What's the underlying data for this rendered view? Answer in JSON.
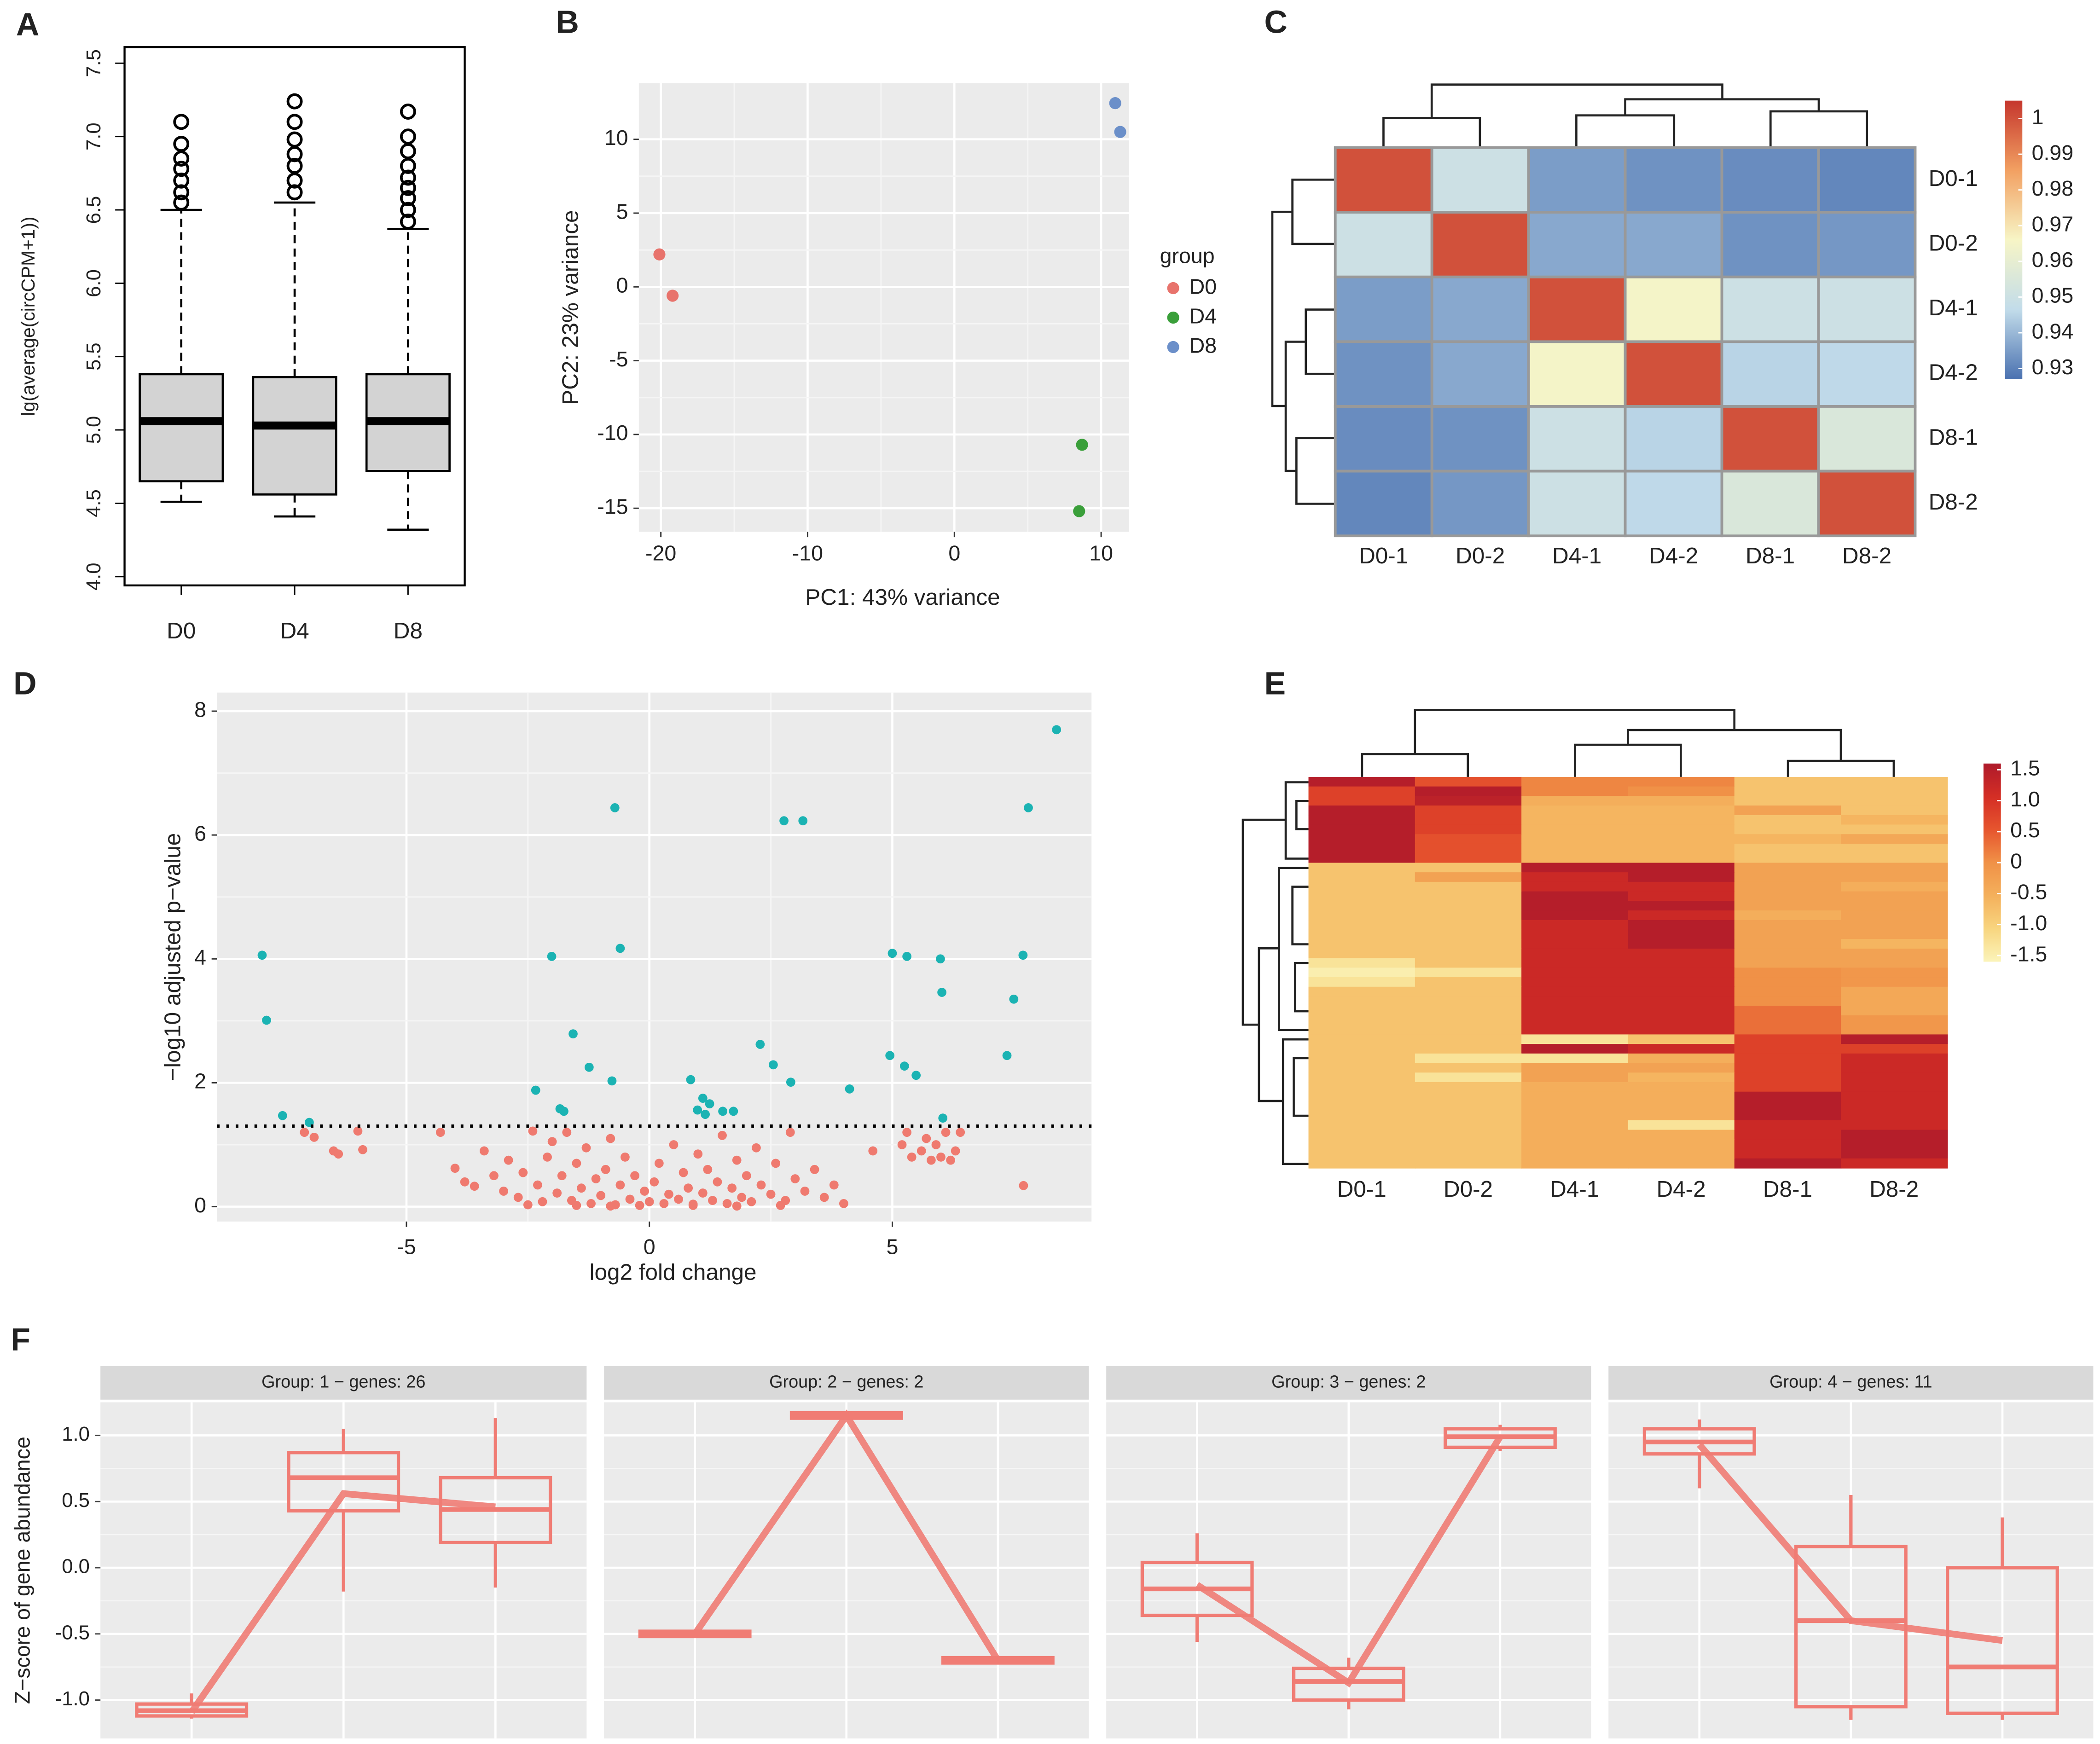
{
  "chart_data": [
    {
      "type": "box",
      "panel_label": "A",
      "ylabel": "lg(average(circCPM+1))",
      "categories": [
        "D0",
        "D4",
        "D8"
      ],
      "color": "#d3d3d3",
      "boxes": [
        {
          "whislo": 4.51,
          "q1": 4.65,
          "med": 5.06,
          "q3": 5.38,
          "whishi": 6.5,
          "fliers": [
            6.55,
            6.62,
            6.7,
            6.78,
            6.85,
            6.95,
            7.1
          ]
        },
        {
          "whislo": 4.41,
          "q1": 4.56,
          "med": 5.03,
          "q3": 5.36,
          "whishi": 6.55,
          "fliers": [
            6.62,
            6.7,
            6.8,
            6.88,
            6.98,
            7.1,
            7.24
          ]
        },
        {
          "whislo": 4.32,
          "q1": 4.72,
          "med": 5.06,
          "q3": 5.38,
          "whishi": 6.37,
          "fliers": [
            6.42,
            6.5,
            6.58,
            6.65,
            6.72,
            6.8,
            6.9,
            7.0,
            7.17
          ]
        }
      ],
      "ylim": [
        3.94,
        7.61
      ],
      "yticks": [
        {
          "value": 4,
          "label": "4.0"
        },
        4.5,
        {
          "value": 5,
          "label": "5.0"
        },
        5.5,
        {
          "value": 6,
          "label": "6.0"
        },
        6.5,
        {
          "value": 7,
          "label": "7.0"
        },
        7.5
      ]
    },
    {
      "type": "scatter",
      "panel_label": "B",
      "xlabel": "PC1: 43% variance",
      "ylabel": "PC2: 23% variance",
      "legend_title": "group",
      "legend": "right",
      "grid": true,
      "series": [
        {
          "name": "D0",
          "color": "#e8736c",
          "x": [
            -20.1,
            -19.2
          ],
          "values": [
            2.2,
            -0.6
          ]
        },
        {
          "name": "D4",
          "color": "#3a9f3a",
          "x": [
            8.7,
            8.5
          ],
          "values": [
            -10.7,
            -15.2
          ]
        },
        {
          "name": "D8",
          "color": "#6b8fc9",
          "x": [
            10.96,
            11.3
          ],
          "values": [
            12.45,
            10.5
          ]
        }
      ],
      "xlim": [
        -21.5,
        11.9
      ],
      "ylim": [
        -16.6,
        13.8
      ],
      "xticks": [
        -20,
        -10,
        0,
        10
      ],
      "yticks": [
        -15,
        -10,
        -5,
        0,
        5,
        10
      ]
    },
    {
      "type": "heatmap",
      "panel_label": "C",
      "rows": [
        "D0-1",
        "D0-2",
        "D4-1",
        "D4-2",
        "D8-1",
        "D8-2"
      ],
      "columns": [
        "D0-1",
        "D0-2",
        "D4-1",
        "D4-2",
        "D8-1",
        "D8-2"
      ],
      "values": [
        [
          1,
          0.95,
          0.935,
          0.933,
          0.932,
          0.931
        ],
        [
          0.95,
          1,
          0.937,
          0.937,
          0.933,
          0.934
        ],
        [
          0.935,
          0.937,
          1,
          0.965,
          0.95,
          0.95
        ],
        [
          0.933,
          0.937,
          0.965,
          1,
          0.945,
          0.946
        ],
        [
          0.932,
          0.933,
          0.95,
          0.945,
          1,
          0.955
        ],
        [
          0.931,
          0.934,
          0.95,
          0.946,
          0.955,
          1
        ]
      ],
      "colorscale": [
        "#4a71b0",
        "#c2dcea",
        "#f7f5c6",
        "#f2a062",
        "#c5362d"
      ],
      "zlim": [
        0.927,
        1.005
      ],
      "zticks": [
        1,
        0.99,
        0.98,
        0.97,
        0.96,
        0.95,
        0.94,
        0.93
      ]
    },
    {
      "type": "scatter",
      "panel_label": "D",
      "xlabel": "log2 fold change",
      "ylabel": "−log10 adjusted p−value",
      "grid": true,
      "hline": 1.3,
      "series": [
        {
          "color": "#1bb3b3",
          "x": [
            8.38,
            7.8,
            -0.71,
            2.77,
            3.16,
            -7.97,
            -7.88,
            -2.01,
            -0.6,
            5.0,
            5.3,
            5.99,
            6.02,
            7.69,
            7.5,
            -1.57,
            -1.24,
            -0.77,
            -2.34,
            2.28,
            2.55,
            2.91,
            4.12,
            4.95,
            5.25,
            5.49,
            7.36,
            -7.55,
            -7.0,
            -1.84,
            -1.76,
            0.85,
            1.1,
            1.24,
            0.99,
            1.15,
            1.51,
            1.73,
            6.04
          ],
          "values": [
            7.7,
            6.44,
            6.44,
            6.23,
            6.23,
            4.06,
            3.01,
            4.04,
            4.17,
            4.09,
            4.04,
            4.0,
            3.46,
            4.06,
            3.35,
            2.79,
            2.25,
            2.03,
            1.88,
            2.62,
            2.29,
            2.01,
            1.9,
            2.44,
            2.27,
            2.12,
            2.44,
            1.47,
            1.36,
            1.58,
            1.54,
            2.05,
            1.75,
            1.66,
            1.56,
            1.49,
            1.54,
            1.54,
            1.43
          ]
        },
        {
          "color": "#ef7a6f",
          "x": [
            -7.1,
            -6.9,
            -6.5,
            -6.4,
            -6.0,
            -5.9,
            -4.3,
            -4.0,
            -3.8,
            -3.6,
            -3.4,
            -3.2,
            -3.0,
            -2.9,
            -2.7,
            -2.6,
            -2.4,
            -2.3,
            -2.2,
            -2.1,
            -2.0,
            -1.9,
            -1.8,
            -1.7,
            -1.6,
            -1.5,
            -1.4,
            -1.3,
            -1.2,
            -1.1,
            -1.0,
            -0.9,
            -0.8,
            -0.7,
            -0.6,
            -0.5,
            -0.4,
            -0.3,
            -0.2,
            -0.1,
            0,
            0.1,
            0.2,
            0.3,
            0.4,
            0.5,
            0.6,
            0.7,
            0.8,
            0.9,
            1.0,
            1.1,
            1.2,
            1.3,
            1.4,
            1.5,
            1.6,
            1.7,
            1.8,
            1.9,
            2.0,
            2.1,
            2.2,
            2.3,
            2.5,
            2.6,
            2.8,
            2.9,
            3.0,
            3.2,
            3.4,
            3.6,
            3.8,
            4.0,
            4.6,
            5.2,
            5.3,
            5.4,
            5.6,
            5.7,
            5.8,
            5.9,
            6.0,
            6.1,
            6.2,
            6.3,
            6.4,
            7.7,
            -1.5,
            -0.8,
            0.9,
            1.8,
            -2.5,
            2.7
          ],
          "values": [
            1.2,
            1.12,
            0.9,
            0.85,
            1.22,
            0.92,
            1.2,
            0.62,
            0.4,
            0.33,
            0.9,
            0.5,
            0.25,
            0.75,
            0.15,
            0.55,
            1.22,
            0.35,
            0.08,
            0.8,
            1.05,
            0.22,
            0.5,
            1.2,
            0.1,
            0.7,
            0.3,
            0.95,
            0.05,
            0.45,
            0.18,
            0.6,
            1.1,
            0.03,
            0.35,
            0.8,
            0.12,
            0.5,
            0.02,
            0.25,
            0.08,
            0.4,
            0.7,
            0.05,
            0.2,
            1.0,
            0.12,
            0.55,
            0.3,
            0.04,
            0.85,
            0.22,
            0.6,
            0.1,
            0.4,
            1.15,
            0.05,
            0.3,
            0.75,
            0.15,
            0.5,
            0.08,
            0.95,
            0.35,
            0.2,
            0.7,
            0.1,
            1.2,
            0.45,
            0.25,
            0.6,
            0.15,
            0.35,
            0.05,
            0.9,
            1.0,
            1.2,
            0.8,
            0.9,
            1.1,
            0.75,
            1.0,
            0.8,
            1.2,
            0.75,
            0.9,
            1.2,
            0.34,
            0.02,
            0.01,
            0.02,
            0.01,
            0.03,
            0.02
          ]
        }
      ],
      "xlim": [
        -8.9,
        9.1
      ],
      "ylim": [
        -0.24,
        8.3
      ],
      "xticks": [
        -5,
        0,
        5
      ],
      "yticks": [
        0,
        2,
        4,
        6,
        8
      ]
    },
    {
      "type": "heatmap",
      "panel_label": "E",
      "columns": [
        "D0-1",
        "D0-2",
        "D4-1",
        "D4-2",
        "D8-1",
        "D8-2"
      ],
      "values": [
        [
          1.5,
          0.6,
          0.1,
          0.1,
          -0.8,
          -0.8
        ],
        [
          0.8,
          1.5,
          0.1,
          0.0,
          -0.8,
          -0.8
        ],
        [
          0.8,
          1.4,
          -0.5,
          -0.5,
          -0.8,
          -0.8
        ],
        [
          1.5,
          0.8,
          -0.6,
          -0.6,
          -0.3,
          -0.8
        ],
        [
          1.5,
          0.8,
          -0.6,
          -0.6,
          -0.8,
          -0.6
        ],
        [
          1.5,
          0.8,
          -0.6,
          -0.6,
          -0.8,
          -0.8
        ],
        [
          1.5,
          0.6,
          -0.6,
          -0.6,
          -0.6,
          -0.4
        ],
        [
          1.5,
          0.6,
          -0.6,
          -0.6,
          -0.8,
          -0.8
        ],
        [
          1.5,
          0.6,
          -0.6,
          -0.6,
          -0.8,
          -0.8
        ],
        [
          -0.8,
          -0.8,
          1.5,
          1.5,
          -0.3,
          -0.3
        ],
        [
          -0.8,
          -0.3,
          1.2,
          1.5,
          -0.3,
          -0.3
        ],
        [
          -0.8,
          -0.8,
          1.2,
          1.2,
          -0.3,
          -0.5
        ],
        [
          -0.8,
          -0.8,
          1.5,
          1.2,
          -0.3,
          -0.3
        ],
        [
          -0.8,
          -0.8,
          1.5,
          1.5,
          -0.3,
          -0.3
        ],
        [
          -0.8,
          -0.8,
          1.5,
          1.2,
          -0.5,
          -0.3
        ],
        [
          -0.8,
          -0.8,
          1.2,
          1.5,
          -0.3,
          -0.3
        ],
        [
          -0.8,
          -0.8,
          1.2,
          1.5,
          -0.3,
          -0.3
        ],
        [
          -0.8,
          -0.8,
          1.2,
          1.5,
          -0.3,
          -0.6
        ],
        [
          -0.8,
          -0.8,
          1.2,
          1.2,
          -0.3,
          -0.3
        ],
        [
          -1.3,
          -0.8,
          1.2,
          1.2,
          -0.3,
          -0.3
        ],
        [
          -1.5,
          -1.3,
          1.2,
          1.2,
          0.0,
          -0.1
        ],
        [
          -1.3,
          -0.8,
          1.2,
          1.2,
          0.0,
          -0.1
        ],
        [
          -0.8,
          -0.8,
          1.2,
          1.2,
          0.0,
          -0.4
        ],
        [
          -0.8,
          -0.8,
          1.2,
          1.2,
          0.0,
          -0.4
        ],
        [
          -0.8,
          -0.8,
          1.2,
          1.2,
          0.3,
          -0.4
        ],
        [
          -0.8,
          -0.8,
          1.2,
          1.2,
          0.3,
          -0.1
        ],
        [
          -0.8,
          -0.8,
          1.2,
          1.2,
          0.3,
          -0.1
        ],
        [
          -0.8,
          -0.8,
          -1.3,
          -0.8,
          0.8,
          1.5
        ],
        [
          -0.8,
          -0.8,
          1.5,
          1.2,
          0.8,
          0.8
        ],
        [
          -0.8,
          -1.3,
          -1.3,
          -0.5,
          0.8,
          1.2
        ],
        [
          -0.8,
          -0.8,
          -0.3,
          -0.3,
          0.8,
          1.2
        ],
        [
          -0.8,
          -1.3,
          -0.3,
          -0.6,
          0.8,
          1.2
        ],
        [
          -0.8,
          -0.8,
          -0.5,
          -0.5,
          0.8,
          1.2
        ],
        [
          -0.8,
          -0.8,
          -0.5,
          -0.5,
          1.5,
          1.2
        ],
        [
          -0.8,
          -0.8,
          -0.5,
          -0.5,
          1.5,
          1.2
        ],
        [
          -0.8,
          -0.8,
          -0.5,
          -0.5,
          1.5,
          1.2
        ],
        [
          -0.8,
          -0.8,
          -0.5,
          -1.3,
          1.2,
          1.2
        ],
        [
          -0.8,
          -0.8,
          -0.5,
          -0.5,
          1.2,
          1.5
        ],
        [
          -0.8,
          -0.8,
          -0.5,
          -0.5,
          1.2,
          1.5
        ],
        [
          -0.8,
          -0.8,
          -0.5,
          -0.5,
          1.2,
          1.5
        ],
        [
          -0.8,
          -0.8,
          -0.5,
          -0.5,
          1.5,
          1.2
        ]
      ],
      "colorscale": [
        "#fbf4ba",
        "#f8d57f",
        "#f4b05c",
        "#f09147",
        "#e6552e",
        "#d42e25",
        "#ae1a2b"
      ],
      "zlim": [
        -1.6,
        1.6
      ],
      "zticks": [
        1.5,
        {
          "value": 1,
          "label": "1.0"
        },
        0.5,
        0,
        -0.5,
        {
          "value": -1,
          "label": "-1.0"
        },
        -1.5
      ]
    },
    {
      "type": "box",
      "panel_label": "F",
      "ylabel": "Z−score of gene abundance",
      "color": "#f07c74",
      "grid": true,
      "ylim": [
        -1.29,
        1.25
      ],
      "yticks": [
        {
          "value": -1,
          "label": "-1.0"
        },
        -0.5,
        {
          "value": 0,
          "label": "0.0"
        },
        0.5,
        {
          "value": 1,
          "label": "1.0"
        }
      ],
      "facets": [
        {
          "title": "Group:  1 − genes: 26",
          "means": [
            -1.09,
            0.56,
            0.46
          ],
          "boxes": [
            {
              "whislo": -1.14,
              "q1": -1.12,
              "med": -1.08,
              "q3": -1.03,
              "whishi": -0.95
            },
            {
              "whislo": -0.18,
              "q1": 0.43,
              "med": 0.68,
              "q3": 0.87,
              "whishi": 1.05
            },
            {
              "whislo": -0.15,
              "q1": 0.19,
              "med": 0.44,
              "q3": 0.68,
              "whishi": 1.13
            }
          ]
        },
        {
          "title": "Group:  2 − genes: 2",
          "means": [
            -0.5,
            1.15,
            -0.7
          ],
          "boxes": [
            {
              "whislo": -0.52,
              "q1": -0.52,
              "med": -0.5,
              "q3": -0.48,
              "whishi": -0.48
            },
            {
              "whislo": 1.13,
              "q1": 1.13,
              "med": 1.15,
              "q3": 1.17,
              "whishi": 1.17
            },
            {
              "whislo": -0.72,
              "q1": -0.72,
              "med": -0.7,
              "q3": -0.68,
              "whishi": -0.68
            }
          ]
        },
        {
          "title": "Group:  3 − genes: 2",
          "means": [
            -0.13,
            -0.87,
            0.99
          ],
          "boxes": [
            {
              "whislo": -0.56,
              "q1": -0.36,
              "med": -0.16,
              "q3": 0.04,
              "whishi": 0.26
            },
            {
              "whislo": -1.07,
              "q1": -1.0,
              "med": -0.86,
              "q3": -0.76,
              "whishi": -0.68
            },
            {
              "whislo": 0.88,
              "q1": 0.91,
              "med": 0.99,
              "q3": 1.05,
              "whishi": 1.08
            }
          ]
        },
        {
          "title": "Group:  4 − genes: 11",
          "means": [
            0.93,
            -0.4,
            -0.55
          ],
          "boxes": [
            {
              "whislo": 0.6,
              "q1": 0.86,
              "med": 0.95,
              "q3": 1.05,
              "whishi": 1.12
            },
            {
              "whislo": -1.15,
              "q1": -1.05,
              "med": -0.4,
              "q3": 0.16,
              "whishi": 0.55
            },
            {
              "whislo": -1.15,
              "q1": -1.1,
              "med": -0.75,
              "q3": 0.0,
              "whishi": 0.38
            }
          ]
        }
      ]
    }
  ]
}
